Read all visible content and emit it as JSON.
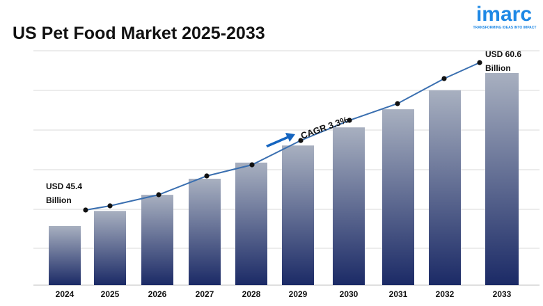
{
  "title": "US Pet Food Market 2025-2033",
  "logo": {
    "name": "imarc",
    "tagline": "TRANSFORMING IDEAS INTO IMPACT"
  },
  "colors": {
    "bar_top": "#a8b0c0",
    "bar_bottom": "#1b2a66",
    "line": "#3a6fb0",
    "arrow": "#1565c0",
    "grid": "#d9d9d9",
    "logo": "#1e88e5"
  },
  "chart_data": {
    "type": "bar",
    "categories": [
      "2024",
      "2025",
      "2026",
      "2027",
      "2028",
      "2029",
      "2030",
      "2031",
      "2032",
      "2033"
    ],
    "values": [
      45.4,
      46.9,
      48.5,
      50.1,
      51.7,
      53.4,
      55.2,
      57.0,
      58.9,
      60.6
    ],
    "grid": true,
    "overlay_line": true,
    "annotations": {
      "start": [
        "USD 45.4",
        "Billion"
      ],
      "end": [
        "USD 60.6",
        "Billion"
      ],
      "cagr": "CAGR 3.3%"
    }
  }
}
